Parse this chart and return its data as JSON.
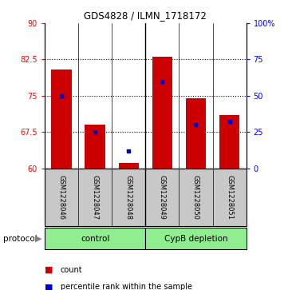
{
  "title": "GDS4828 / ILMN_1718172",
  "samples": [
    "GSM1228046",
    "GSM1228047",
    "GSM1228048",
    "GSM1228049",
    "GSM1228050",
    "GSM1228051"
  ],
  "count_values": [
    80.5,
    69.0,
    61.0,
    83.0,
    74.5,
    71.0
  ],
  "percentile_values": [
    50,
    25,
    12,
    60,
    30,
    32
  ],
  "bar_bottom": 60,
  "ylim_left": [
    60,
    90
  ],
  "ylim_right": [
    0,
    100
  ],
  "yticks_left": [
    60,
    67.5,
    75,
    82.5,
    90
  ],
  "yticks_right": [
    0,
    25,
    50,
    75,
    100
  ],
  "ytick_labels_right": [
    "0",
    "25",
    "50",
    "75",
    "100%"
  ],
  "groups": [
    {
      "label": "control",
      "indices": [
        0,
        1,
        2
      ],
      "color": "#90EE90"
    },
    {
      "label": "CypB depletion",
      "indices": [
        3,
        4,
        5
      ],
      "color": "#90EE90"
    }
  ],
  "bar_color": "#CC0000",
  "percentile_color": "#0000CC",
  "bar_width": 0.6,
  "sample_area_color": "#C8C8C8",
  "protocol_arrow_label": "protocol",
  "legend_count_label": "count",
  "legend_percentile_label": "percentile rank within the sample",
  "gridlines_at": [
    67.5,
    75,
    82.5
  ]
}
